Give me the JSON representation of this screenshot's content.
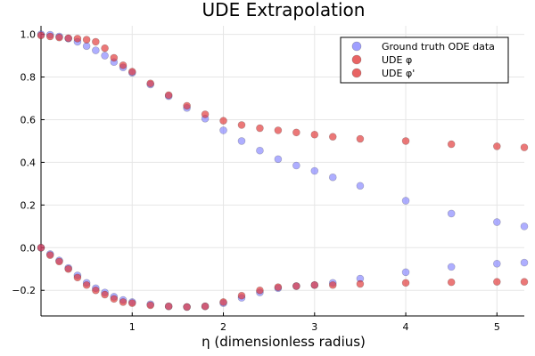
{
  "chart_data": {
    "type": "scatter",
    "title": "UDE Extrapolation",
    "xlabel": "η (dimensionless radius)",
    "ylabel": "",
    "xlim": [
      0,
      5.3
    ],
    "ylim": [
      -0.32,
      1.04
    ],
    "xticks": [
      1,
      2,
      3,
      4,
      5
    ],
    "xtick_labels": [
      "1",
      "2",
      "3",
      "4",
      "5"
    ],
    "yticks": [
      -0.2,
      0.0,
      0.2,
      0.4,
      0.6,
      0.8,
      1.0
    ],
    "ytick_labels": [
      "−0.2",
      "0.0",
      "0.2",
      "0.4",
      "0.6",
      "0.8",
      "1.0"
    ],
    "grid": true,
    "legend_position": "top-right",
    "series": [
      {
        "name": "Ground truth ODE data",
        "color": "#6b6bff",
        "opacity": 0.55,
        "groups": [
          {
            "x": [
              0.0,
              0.1,
              0.2,
              0.3,
              0.4,
              0.5,
              0.6,
              0.7,
              0.8,
              0.9,
              1.0,
              1.2,
              1.4,
              1.6,
              1.8,
              2.0,
              2.2,
              2.4,
              2.6,
              2.8,
              3.0,
              3.2,
              3.5,
              4.0,
              4.5,
              5.0,
              5.3
            ],
            "y": [
              1.0,
              0.998,
              0.99,
              0.98,
              0.965,
              0.945,
              0.925,
              0.9,
              0.87,
              0.845,
              0.82,
              0.765,
              0.71,
              0.655,
              0.605,
              0.55,
              0.5,
              0.455,
              0.415,
              0.385,
              0.36,
              0.33,
              0.29,
              0.22,
              0.16,
              0.12,
              0.1
            ]
          },
          {
            "x": [
              0.0,
              0.1,
              0.2,
              0.3,
              0.4,
              0.5,
              0.6,
              0.7,
              0.8,
              0.9,
              1.0,
              1.2,
              1.4,
              1.6,
              1.8,
              2.0,
              2.2,
              2.4,
              2.6,
              2.8,
              3.0,
              3.2,
              3.5,
              4.0,
              4.5,
              5.0,
              5.3
            ],
            "y": [
              0.0,
              -0.03,
              -0.06,
              -0.095,
              -0.13,
              -0.165,
              -0.19,
              -0.21,
              -0.23,
              -0.245,
              -0.255,
              -0.265,
              -0.275,
              -0.278,
              -0.275,
              -0.26,
              -0.235,
              -0.21,
              -0.19,
              -0.18,
              -0.175,
              -0.165,
              -0.145,
              -0.115,
              -0.09,
              -0.075,
              -0.07
            ]
          }
        ]
      },
      {
        "name": "UDE φ",
        "color": "#e03030",
        "opacity": 0.65,
        "groups": [
          {
            "x": [
              0.0,
              0.1,
              0.2,
              0.3,
              0.4,
              0.5,
              0.6,
              0.7,
              0.8,
              0.9,
              1.0,
              1.2,
              1.4,
              1.6,
              1.8,
              2.0,
              2.2,
              2.4,
              2.6,
              2.8,
              3.0,
              3.2,
              3.5,
              4.0,
              4.5,
              5.0,
              5.3
            ],
            "y": [
              0.995,
              0.99,
              0.985,
              0.982,
              0.98,
              0.975,
              0.965,
              0.935,
              0.89,
              0.855,
              0.825,
              0.77,
              0.715,
              0.665,
              0.625,
              0.595,
              0.575,
              0.56,
              0.55,
              0.54,
              0.53,
              0.52,
              0.51,
              0.5,
              0.485,
              0.475,
              0.47
            ]
          }
        ]
      },
      {
        "name": "UDE φ'",
        "color": "#e03030",
        "opacity": 0.65,
        "groups": [
          {
            "x": [
              0.0,
              0.1,
              0.2,
              0.3,
              0.4,
              0.5,
              0.6,
              0.7,
              0.8,
              0.9,
              1.0,
              1.2,
              1.4,
              1.6,
              1.8,
              2.0,
              2.2,
              2.4,
              2.6,
              2.8,
              3.0,
              3.2,
              3.5,
              4.0,
              4.5,
              5.0,
              5.3
            ],
            "y": [
              0.0,
              -0.035,
              -0.065,
              -0.1,
              -0.14,
              -0.175,
              -0.2,
              -0.22,
              -0.24,
              -0.255,
              -0.26,
              -0.27,
              -0.275,
              -0.278,
              -0.275,
              -0.255,
              -0.225,
              -0.2,
              -0.185,
              -0.18,
              -0.175,
              -0.175,
              -0.17,
              -0.165,
              -0.162,
              -0.16,
              -0.16
            ]
          }
        ]
      }
    ],
    "legend": [
      "Ground truth ODE data",
      "UDE φ",
      "UDE φ'"
    ]
  }
}
